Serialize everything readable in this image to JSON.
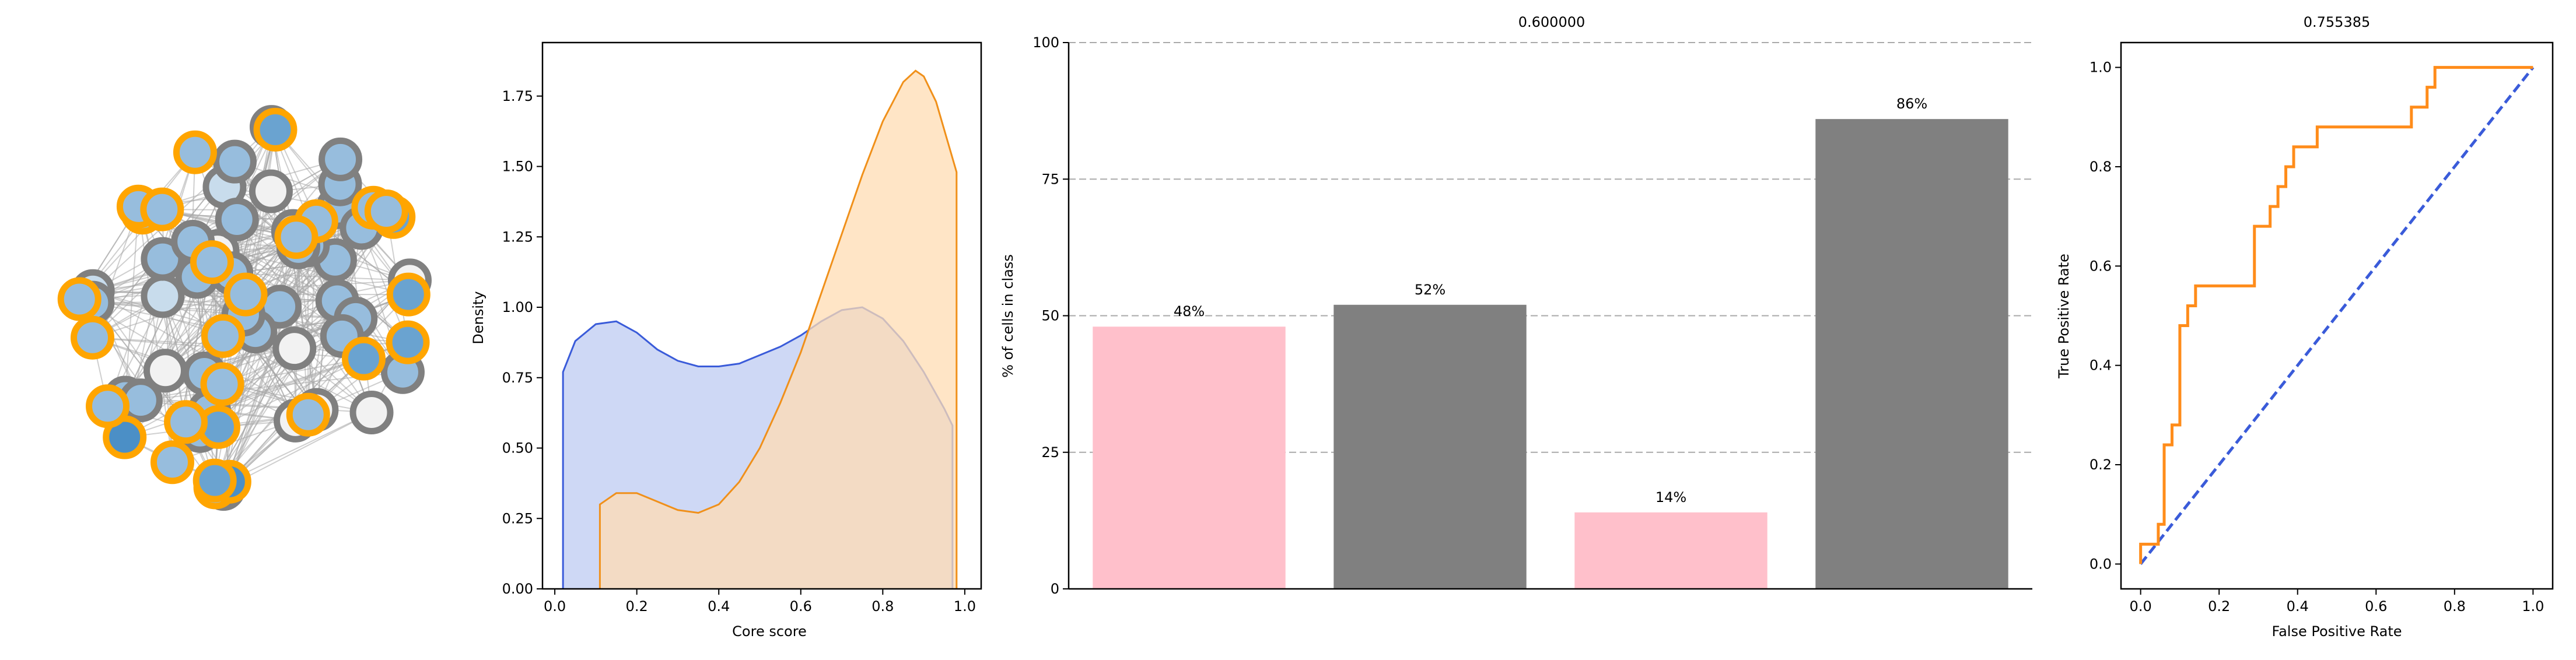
{
  "colors": {
    "core_orange": "#ffa500",
    "peripheral_gray": "#808080",
    "kde_blue_line": "#3a5bd9",
    "kde_blue_fill": "#c9d4f4",
    "kde_orange_line": "#f0901a",
    "kde_orange_fill": "#ffdcb3",
    "bar_pink": "#ffc0cb",
    "bar_gray": "#808080",
    "roc_orange": "#ff8c1a",
    "diag_blue": "#3a5bd9",
    "node_fill_scale": [
      "#f2f2f2",
      "#c8dcec",
      "#97bddd",
      "#6aa3d0",
      "#4b8fc6"
    ]
  },
  "chart_data": [
    {
      "type": "network",
      "node_count": 70,
      "highlight_ring_color": "core_orange",
      "default_ring_color": "peripheral_gray"
    },
    {
      "type": "area",
      "title": "",
      "xlabel": "Core score",
      "ylabel": "Density",
      "xlim": [
        -0.03,
        1.04
      ],
      "ylim": [
        0,
        1.94
      ],
      "xticks": [
        "0.0",
        "0.2",
        "0.4",
        "0.6",
        "0.8",
        "1.0"
      ],
      "yticks": [
        "0.00",
        "0.25",
        "0.50",
        "0.75",
        "1.00",
        "1.25",
        "1.50",
        "1.75"
      ],
      "series": [
        {
          "color": "blue",
          "x": [
            0.02,
            0.05,
            0.1,
            0.15,
            0.2,
            0.25,
            0.3,
            0.35,
            0.4,
            0.45,
            0.5,
            0.55,
            0.6,
            0.65,
            0.7,
            0.75,
            0.8,
            0.85,
            0.9,
            0.95,
            0.97
          ],
          "y": [
            0.77,
            0.88,
            0.94,
            0.95,
            0.91,
            0.85,
            0.81,
            0.79,
            0.79,
            0.8,
            0.83,
            0.86,
            0.9,
            0.95,
            0.99,
            1.0,
            0.96,
            0.88,
            0.77,
            0.64,
            0.58
          ]
        },
        {
          "color": "orange",
          "x": [
            0.11,
            0.13,
            0.15,
            0.2,
            0.25,
            0.3,
            0.35,
            0.4,
            0.45,
            0.5,
            0.55,
            0.6,
            0.65,
            0.7,
            0.75,
            0.8,
            0.85,
            0.88,
            0.9,
            0.93,
            0.96,
            0.98
          ],
          "y": [
            0.3,
            0.32,
            0.34,
            0.34,
            0.31,
            0.28,
            0.27,
            0.3,
            0.38,
            0.5,
            0.66,
            0.84,
            1.05,
            1.26,
            1.47,
            1.66,
            1.8,
            1.84,
            1.82,
            1.73,
            1.58,
            1.48
          ]
        }
      ]
    },
    {
      "type": "bar",
      "title": "0.600000",
      "xlabel": "",
      "ylabel": "% of cells in class",
      "ylim": [
        0,
        100
      ],
      "yticks": [
        "0",
        "25",
        "50",
        "75",
        "100"
      ],
      "grid": "horizontal dashed",
      "values": [
        48,
        52,
        14,
        86
      ],
      "labels": [
        "48%",
        "52%",
        "14%",
        "86%"
      ],
      "bar_colors": [
        "pink",
        "gray",
        "pink",
        "gray"
      ]
    },
    {
      "type": "line",
      "title": "0.755385",
      "xlabel": "False Positive Rate",
      "ylabel": "True Positive Rate",
      "xlim": [
        -0.05,
        1.05
      ],
      "ylim": [
        -0.05,
        1.05
      ],
      "xticks": [
        "0.0",
        "0.2",
        "0.4",
        "0.6",
        "0.8",
        "1.0"
      ],
      "yticks": [
        "0.0",
        "0.2",
        "0.4",
        "0.6",
        "0.8",
        "1.0"
      ],
      "roc": {
        "fpr": [
          0,
          0,
          0.02,
          0.02,
          0.045,
          0.045,
          0.06,
          0.06,
          0.08,
          0.08,
          0.1,
          0.1,
          0.12,
          0.12,
          0.14,
          0.14,
          0.29,
          0.29,
          0.33,
          0.33,
          0.35,
          0.35,
          0.37,
          0.37,
          0.39,
          0.39,
          0.43,
          0.43,
          0.45,
          0.45,
          0.47,
          0.47,
          0.69,
          0.69,
          0.73,
          0.73,
          0.75,
          0.75,
          1.0
        ],
        "tpr": [
          0,
          0.04,
          0.04,
          0.04,
          0.04,
          0.08,
          0.08,
          0.24,
          0.24,
          0.28,
          0.28,
          0.48,
          0.48,
          0.52,
          0.52,
          0.56,
          0.56,
          0.68,
          0.68,
          0.72,
          0.72,
          0.76,
          0.76,
          0.8,
          0.8,
          0.84,
          0.84,
          0.84,
          0.84,
          0.88,
          0.88,
          0.88,
          0.88,
          0.92,
          0.92,
          0.96,
          0.96,
          1.0,
          1.0
        ]
      },
      "diagonal": {
        "x": [
          0,
          1
        ],
        "y": [
          0,
          1
        ],
        "style": "dashed"
      }
    }
  ]
}
